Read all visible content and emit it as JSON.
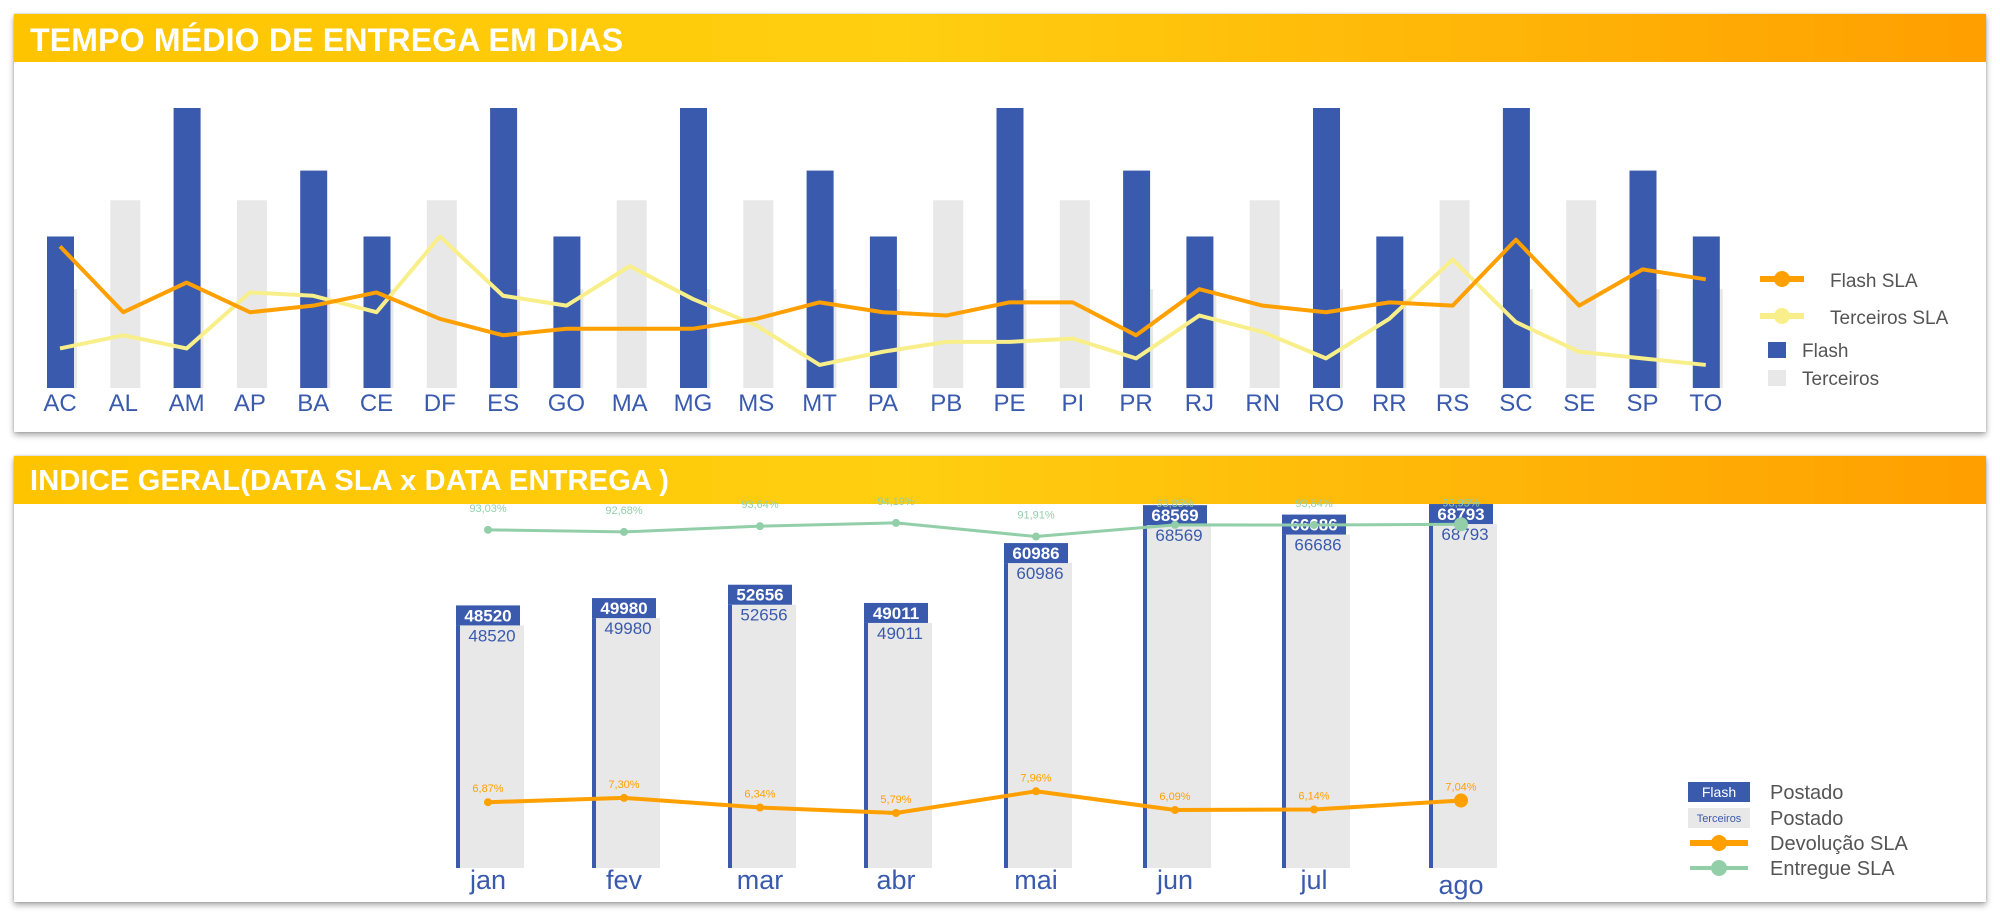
{
  "colors": {
    "flash": "#3a5aad",
    "terceiros": "#e8e8e8",
    "flash_sla": "#ffa000",
    "terceiros_sla": "#f8ef8a",
    "entregue_sla": "#92cfa9",
    "header_start": "#ffc400",
    "header_end": "#ff9f00"
  },
  "top_chart": {
    "title": "TEMPO MÉDIO DE ENTREGA EM DIAS",
    "legend": {
      "flash_sla": "Flash SLA",
      "terceiros_sla": "Terceiros SLA",
      "flash": "Flash",
      "terceiros": "Terceiros"
    }
  },
  "bottom_chart": {
    "title": "INDICE GERAL(DATA SLA x DATA ENTREGA )",
    "legend": {
      "flash_label": "Flash",
      "terceiros_label": "Terceiros",
      "postado": "Postado",
      "devolucao_sla": "Devolução SLA",
      "entregue_sla": "Entregue SLA"
    }
  },
  "chart_data": [
    {
      "type": "bar",
      "title": "TEMPO MÉDIO DE ENTREGA EM DIAS",
      "categories": [
        "AC",
        "AL",
        "AM",
        "AP",
        "BA",
        "CE",
        "DF",
        "ES",
        "GO",
        "MA",
        "MG",
        "MS",
        "MT",
        "PA",
        "PB",
        "PE",
        "PI",
        "PR",
        "RJ",
        "RN",
        "RO",
        "RR",
        "RS",
        "SC",
        "SE",
        "SP",
        "TO"
      ],
      "ylim": [
        0,
        8.5
      ],
      "grid": false,
      "legend_placement": "right",
      "series": [
        {
          "name": "Flash",
          "type": "bar",
          "values": [
            4.6,
            null,
            8.5,
            null,
            6.6,
            4.6,
            null,
            8.5,
            4.6,
            null,
            8.5,
            null,
            6.6,
            4.6,
            null,
            8.5,
            null,
            6.6,
            4.6,
            null,
            8.5,
            4.6,
            null,
            8.5,
            null,
            6.6,
            4.6
          ]
        },
        {
          "name": "Terceiros",
          "type": "bar",
          "values": [
            3.0,
            5.7,
            3.0,
            5.7,
            3.0,
            3.0,
            5.7,
            3.0,
            3.0,
            5.7,
            3.0,
            5.7,
            3.0,
            3.0,
            5.7,
            3.0,
            5.7,
            3.0,
            3.0,
            5.7,
            3.0,
            3.0,
            5.7,
            3.0,
            5.7,
            3.0,
            3.0
          ]
        },
        {
          "name": "Flash SLA",
          "type": "line",
          "values": [
            4.3,
            2.3,
            3.2,
            2.3,
            2.5,
            2.9,
            2.1,
            1.6,
            1.8,
            1.8,
            1.8,
            2.1,
            2.6,
            2.3,
            2.2,
            2.6,
            2.6,
            1.6,
            3.0,
            2.5,
            2.3,
            2.6,
            2.5,
            4.5,
            2.5,
            3.6,
            3.3
          ]
        },
        {
          "name": "Terceiros SLA",
          "type": "line",
          "values": [
            1.2,
            1.6,
            1.2,
            2.9,
            2.8,
            2.3,
            4.6,
            2.8,
            2.5,
            3.7,
            2.7,
            1.9,
            0.7,
            1.1,
            1.4,
            1.4,
            1.5,
            0.9,
            2.2,
            1.7,
            0.9,
            2.1,
            3.9,
            2.0,
            1.1,
            0.9,
            0.7
          ]
        }
      ]
    },
    {
      "type": "bar",
      "title": "INDICE GERAL(DATA SLA x DATA ENTREGA )",
      "categories": [
        "jan",
        "fev",
        "mar",
        "abr",
        "mai",
        "jun",
        "jul",
        "ago"
      ],
      "grid": false,
      "legend_placement": "bottom-right",
      "series": [
        {
          "name": "Flash",
          "label": "Postado",
          "type": "bar",
          "values": [
            48520,
            49980,
            52656,
            49011,
            60986,
            68569,
            66686,
            68793
          ]
        },
        {
          "name": "Terceiros",
          "label": "Postado",
          "type": "bar",
          "values": [
            48520,
            49980,
            52656,
            49011,
            60986,
            68569,
            66686,
            68793
          ]
        },
        {
          "name": "Devolução SLA",
          "type": "line",
          "values": [
            6.87,
            7.3,
            6.34,
            5.79,
            7.96,
            6.09,
            6.14,
            7.04
          ],
          "labels": [
            "6,87%",
            "7,30%",
            "6,34%",
            "5,79%",
            "7,96%",
            "6,09%",
            "6,14%",
            "7,04%"
          ]
        },
        {
          "name": "Entregue SLA",
          "type": "line",
          "values": [
            93.03,
            92.68,
            93.64,
            94.19,
            91.91,
            93.85,
            93.84,
            93.95
          ],
          "labels": [
            "93,03%",
            "92,68%",
            "93,64%",
            "94,19%",
            "91,91%",
            "93,85%",
            "93,84%",
            "93,95%"
          ]
        }
      ]
    }
  ]
}
